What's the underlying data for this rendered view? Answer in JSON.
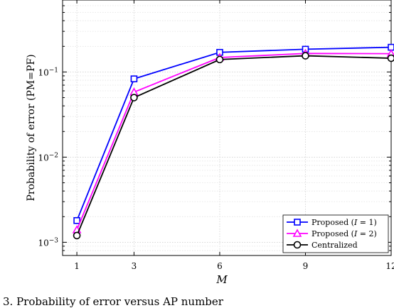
{
  "chart_data": {
    "type": "line",
    "xlabel": "M",
    "ylabel": "Probability of error (PM=PF)",
    "x": [
      1,
      3,
      6,
      9,
      12
    ],
    "xticks": [
      "1",
      "3",
      "6",
      "9",
      "12"
    ],
    "xlim": [
      0.5,
      12
    ],
    "ylim": [
      0.0007,
      0.7
    ],
    "yscale": "log",
    "yticks": [
      {
        "value": 0.001,
        "base": "10",
        "exp": "−3"
      },
      {
        "value": 0.01,
        "base": "10",
        "exp": "−2"
      },
      {
        "value": 0.1,
        "base": "10",
        "exp": "−1"
      }
    ],
    "grid": true,
    "legend_position": "bottom-right",
    "series": [
      {
        "name": "Proposed (I = 1)",
        "label_prefix": "Proposed (",
        "label_var": "I",
        "label_suffix": " = 1)",
        "marker": "square",
        "color": "#0000ff",
        "values": [
          0.0018,
          0.083,
          0.17,
          0.185,
          0.195
        ]
      },
      {
        "name": "Proposed (I = 2)",
        "label_prefix": "Proposed (",
        "label_var": "I",
        "label_suffix": " = 2)",
        "marker": "triangle",
        "color": "#ff00ff",
        "values": [
          0.0014,
          0.058,
          0.148,
          0.165,
          0.164
        ]
      },
      {
        "name": "Centralized",
        "label_prefix": "Centralized",
        "label_var": "",
        "label_suffix": "",
        "marker": "circle",
        "color": "#000000",
        "values": [
          0.0012,
          0.05,
          0.14,
          0.155,
          0.145
        ]
      }
    ]
  },
  "caption": "3.  Probability of error versus AP number"
}
